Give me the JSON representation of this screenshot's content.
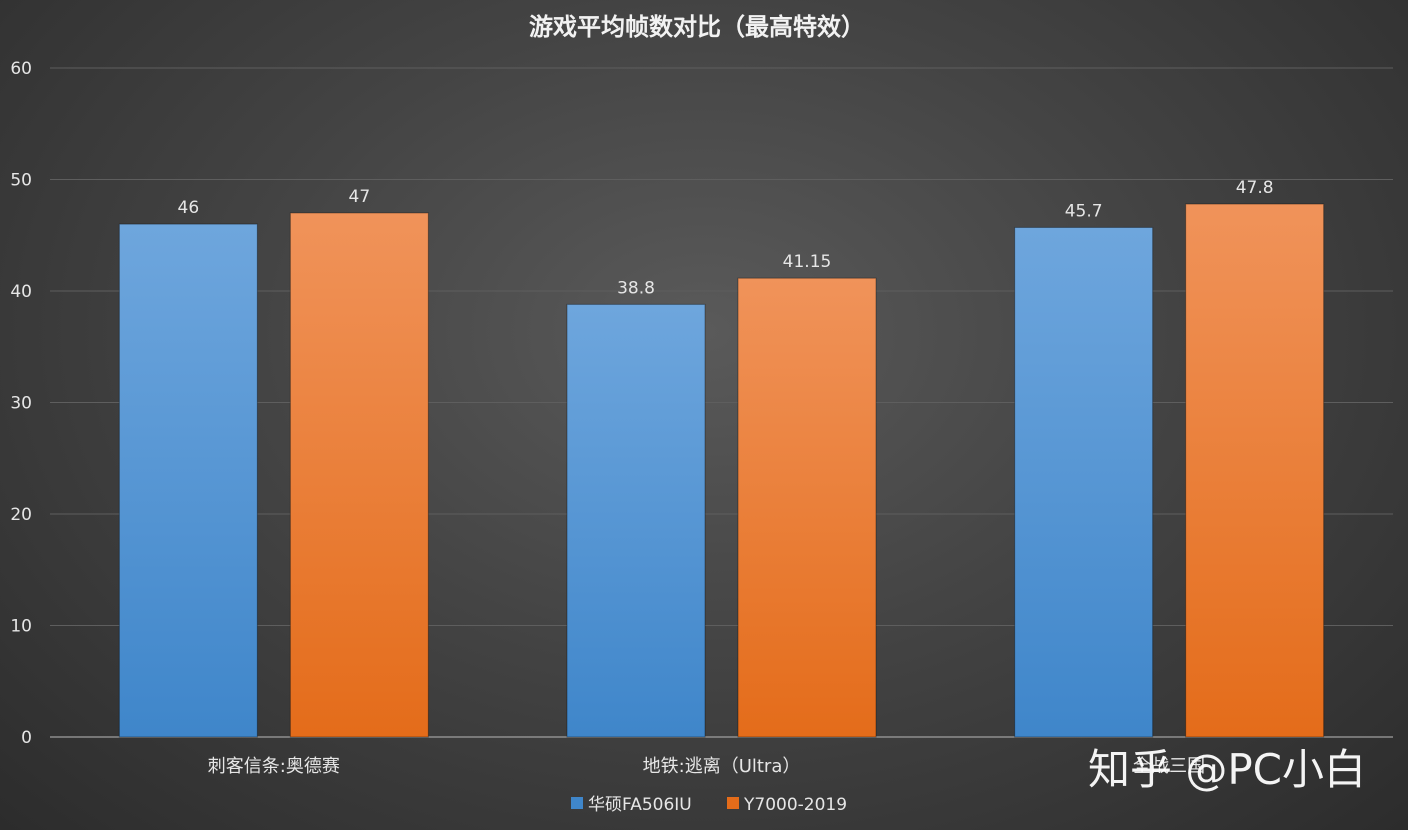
{
  "watermark": "知乎 @PC小白",
  "colors": {
    "series1_top": "#6ea6dd",
    "series1_bottom": "#3f86ca",
    "series2_top": "#f0935a",
    "series2_bottom": "#e46c1a"
  },
  "chart_data": {
    "type": "bar",
    "title": "游戏平均帧数对比（最高特效）",
    "xlabel": "",
    "ylabel": "",
    "categories": [
      "刺客信条:奥德赛",
      "地铁:逃离（Ultra）",
      "全战三国"
    ],
    "series": [
      {
        "name": "华硕FA506IU",
        "values": [
          46,
          38.8,
          45.7
        ],
        "labels": [
          "46",
          "38.8",
          "45.7"
        ]
      },
      {
        "name": "Y7000-2019",
        "values": [
          47,
          41.15,
          47.8
        ],
        "labels": [
          "47",
          "41.15",
          "47.8"
        ]
      }
    ],
    "ylim": [
      0,
      60
    ],
    "yticks": [
      0,
      10,
      20,
      30,
      40,
      50,
      60
    ],
    "grid": true,
    "legend_position": "bottom"
  }
}
